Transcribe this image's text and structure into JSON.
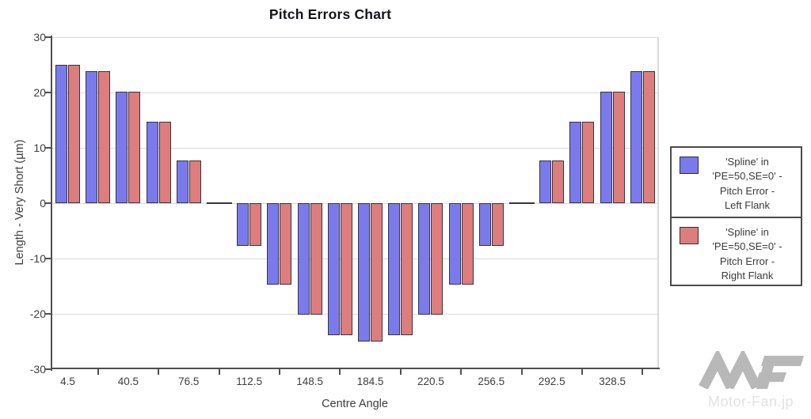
{
  "chart_data": {
    "type": "bar",
    "title": "Pitch Errors Chart",
    "xlabel": "Centre Angle",
    "ylabel": "Length - Very Short (µm)",
    "ylim": [
      -30,
      30
    ],
    "yticks": [
      30,
      20,
      10,
      0,
      -10,
      -20,
      -30
    ],
    "grid": "horizontal",
    "legend_position": "right",
    "x": [
      4.5,
      22.5,
      40.5,
      58.5,
      76.5,
      94.5,
      112.5,
      130.5,
      148.5,
      166.5,
      184.5,
      202.5,
      220.5,
      238.5,
      256.5,
      274.5,
      292.5,
      310.5,
      328.5,
      346.5
    ],
    "xtick_labels": [
      "4.5",
      "40.5",
      "76.5",
      "112.5",
      "148.5",
      "184.5",
      "220.5",
      "256.5",
      "292.5",
      "328.5"
    ],
    "series": [
      {
        "name": "'Spline' in 'PE=50,SE=0' - Pitch Error - Left Flank",
        "color": "#7b7aec",
        "values": [
          25.0,
          23.8,
          20.2,
          14.7,
          7.7,
          0.0,
          -7.7,
          -14.7,
          -20.2,
          -23.8,
          -25.0,
          -23.8,
          -20.2,
          -14.7,
          -7.7,
          0.0,
          7.7,
          14.7,
          20.2,
          23.8
        ]
      },
      {
        "name": "'Spline' in 'PE=50,SE=0' - Pitch Error - Right Flank",
        "color": "#dd7d7d",
        "values": [
          25.0,
          23.8,
          20.2,
          14.7,
          7.7,
          0.0,
          -7.7,
          -14.7,
          -20.2,
          -23.8,
          -25.0,
          -23.8,
          -20.2,
          -14.7,
          -7.7,
          0.0,
          7.7,
          14.7,
          20.2,
          23.8
        ]
      }
    ]
  },
  "legend": {
    "entries": [
      {
        "color": "#7b7aec",
        "lines": [
          "'Spline' in",
          "'PE=50,SE=0' -",
          "Pitch Error -",
          "Left Flank"
        ]
      },
      {
        "color": "#dd7d7d",
        "lines": [
          "'Spline' in",
          "'PE=50,SE=0' -",
          "Pitch Error -",
          "Right Flank"
        ]
      }
    ]
  },
  "watermark": {
    "text": "Motor-Fan.jp"
  },
  "colors": {
    "grid": "#d9d9d9",
    "axis": "#4f4f4f",
    "bar_border": "#35353f",
    "text": "#3d3d3d",
    "title": "#14141e",
    "watermark_logo": "#b8b8b8",
    "watermark_text": "#e2e2e2"
  }
}
